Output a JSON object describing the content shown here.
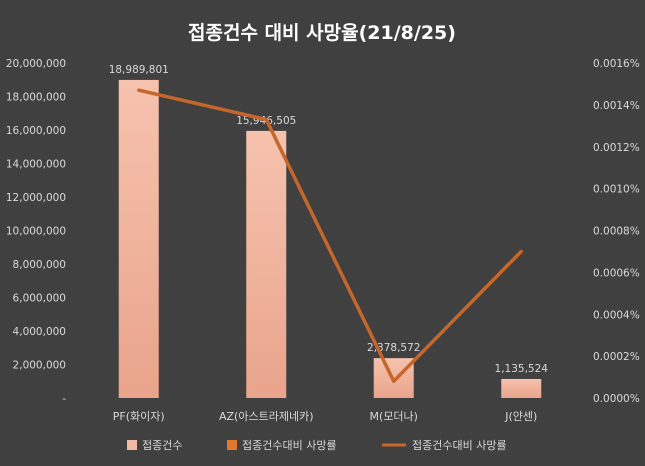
{
  "chart_data": {
    "type": "bar",
    "title": "접종건수 대비 사망율(21/8/25)",
    "categories": [
      "PF(화이자)",
      "AZ(아스트라제네카)",
      "M(모더나)",
      "J(얀센)"
    ],
    "series": [
      {
        "name": "접종건수",
        "type": "bar",
        "axis": "left",
        "values": [
          18989801,
          15946505,
          2378572,
          1135524
        ],
        "data_labels": [
          "18,989,801",
          "15,946,505",
          "2,378,572",
          "1,135,524"
        ],
        "color": "#F4B9A4"
      },
      {
        "name": "접종건수대비 사망률",
        "type": "line",
        "axis": "right",
        "values": [
          1.47e-05,
          1.33e-05,
          8e-07,
          7e-06
        ],
        "color": "#C5662A"
      }
    ],
    "legend_entries": [
      {
        "label": "접종건수",
        "symbol": "bar",
        "color": "#F4B9A4"
      },
      {
        "label": "접종건수대비 사망률",
        "symbol": "bar",
        "color": "#E0782F"
      },
      {
        "label": "접종건수대비 사망률",
        "symbol": "line",
        "color": "#C5662A"
      }
    ],
    "y_left": {
      "min": 0,
      "max": 20000000,
      "step": 2000000,
      "tick_labels": [
        "-",
        "2,000,000",
        "4,000,000",
        "6,000,000",
        "8,000,000",
        "10,000,000",
        "12,000,000",
        "14,000,000",
        "16,000,000",
        "18,000,000",
        "20,000,000"
      ]
    },
    "y_right": {
      "min": 0,
      "max": 1.6e-05,
      "step": 2e-06,
      "tick_labels": [
        "0.0000%",
        "0.0002%",
        "0.0004%",
        "0.0006%",
        "0.0008%",
        "0.0010%",
        "0.0012%",
        "0.0014%",
        "0.0016%"
      ]
    },
    "grid": false,
    "legend_position": "bottom",
    "colors": {
      "background": "#404040",
      "text": "#D9D9D9",
      "title": "#FFFFFF"
    }
  }
}
